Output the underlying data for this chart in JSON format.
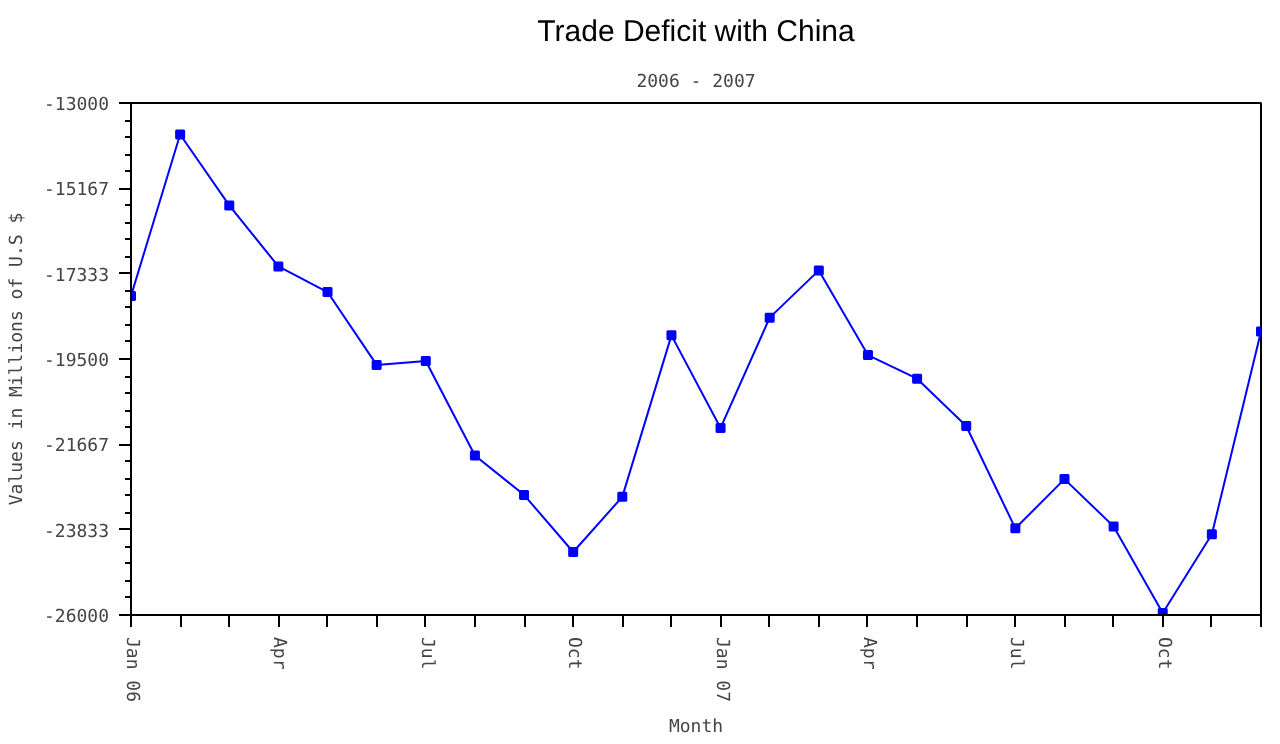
{
  "chart_data": {
    "type": "line",
    "title": "Trade Deficit with China",
    "subtitle": "2006 - 2007",
    "xlabel": "Month",
    "ylabel": "Values in Millions of U.S $",
    "categories": [
      "Jan 06",
      null,
      null,
      "Apr",
      null,
      null,
      "Jul",
      null,
      null,
      "Oct",
      null,
      null,
      "Jan 07",
      null,
      null,
      "Apr",
      null,
      null,
      "Jul",
      null,
      null,
      "Oct",
      null,
      null
    ],
    "series": [
      {
        "color": "#0000ff",
        "values": [
          -17900,
          -13800,
          -15600,
          -17150,
          -17800,
          -19650,
          -19550,
          -21950,
          -22950,
          -24400,
          -23000,
          -18900,
          -21250,
          -18450,
          -17250,
          -19400,
          -20000,
          -21200,
          -23800,
          -22550,
          -23750,
          -25950,
          -23950,
          -18800
        ]
      }
    ],
    "ylim": [
      -26000,
      -13000
    ],
    "yticks": [
      -26000,
      -23833,
      -21667,
      -19500,
      -17333,
      -15167,
      -13000
    ],
    "grid": false,
    "marker": "square",
    "line_style": "solid"
  }
}
